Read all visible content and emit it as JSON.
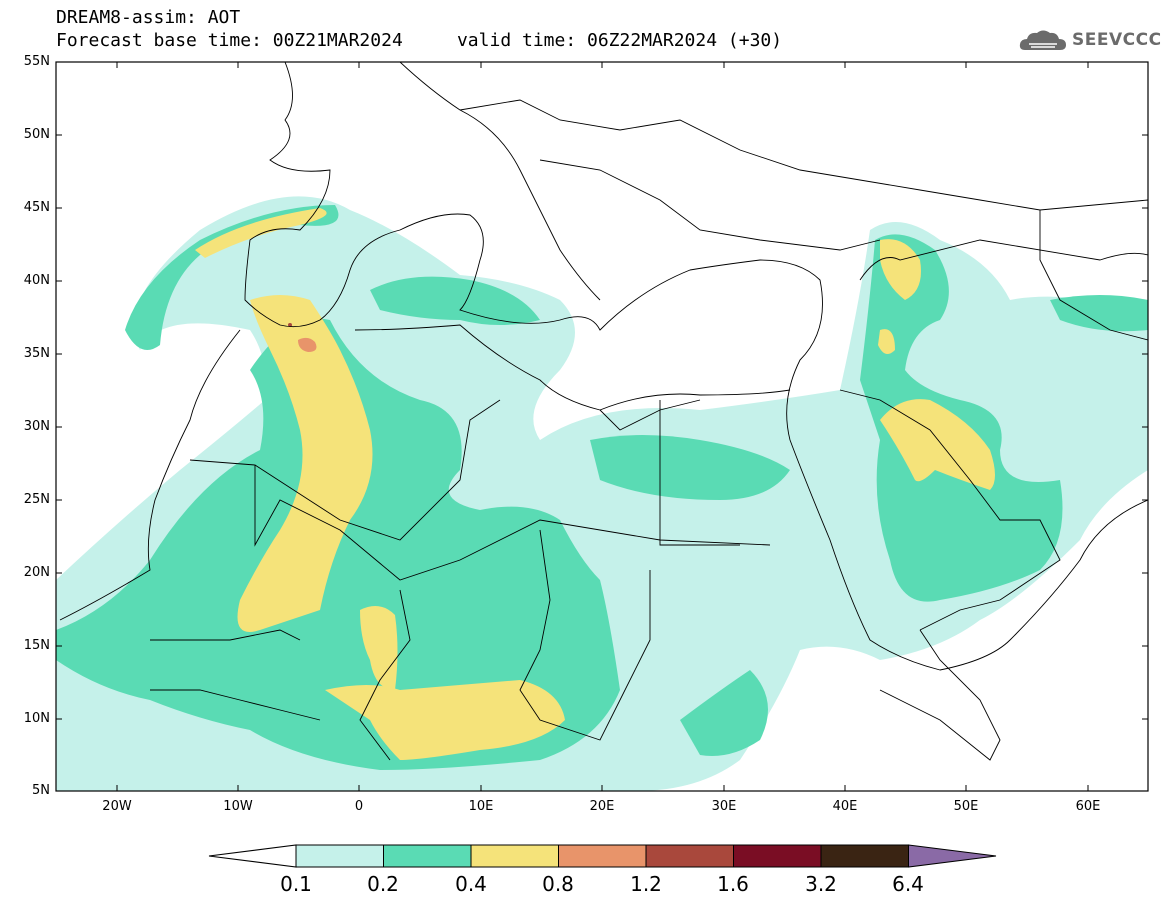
{
  "header": {
    "title": "DREAM8-assim: AOT",
    "subtitle": "Forecast base time: 00Z21MAR2024     valid time: 06Z22MAR2024 (+30)"
  },
  "logo": {
    "text": "SEEVCCC",
    "icon": "cloud-logo-icon"
  },
  "map": {
    "lat_labels": [
      "55N",
      "50N",
      "45N",
      "40N",
      "35N",
      "30N",
      "25N",
      "20N",
      "15N",
      "10N",
      "5N"
    ],
    "lon_labels": [
      "20W",
      "10W",
      "0",
      "10E",
      "20E",
      "30E",
      "40E",
      "50E",
      "60E"
    ],
    "lat_range": [
      5,
      55
    ],
    "lon_range": [
      -25,
      65
    ]
  },
  "colorbar": {
    "labels": [
      "0.1",
      "0.2",
      "0.4",
      "0.8",
      "1.2",
      "1.6",
      "3.2",
      "6.4"
    ],
    "colors": [
      "#ffffff",
      "#c5f1ea",
      "#5adbb4",
      "#f5e37a",
      "#e8946a",
      "#a9483c",
      "#7a0d24",
      "#3a2413",
      "#8a6aa6"
    ]
  }
}
